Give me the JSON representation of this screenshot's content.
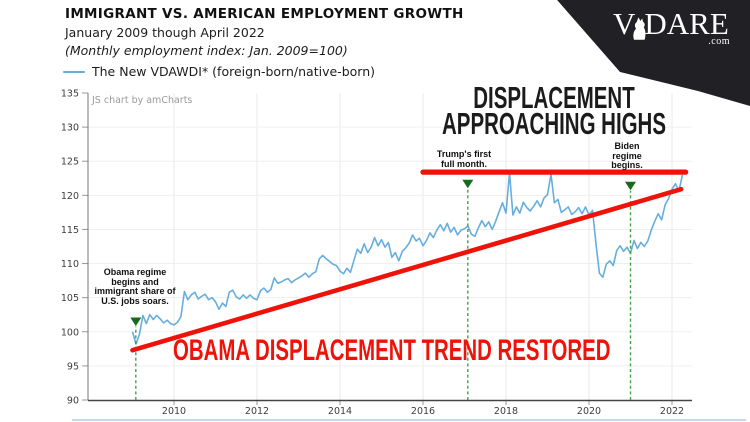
{
  "header": {
    "title": "IMMIGRANT VS. AMERICAN EMPLOYMENT GROWTH",
    "subtitle": "January 2009 though April 2022",
    "index_note": "(Monthly employment index: Jan. 2009=100)",
    "legend_label": "The New VDAWDI* (foreign-born/native-born)"
  },
  "branding": {
    "logo_v": "V",
    "logo_dare": "DARE",
    "logo_com": ".com",
    "banner_color": "#212125",
    "deer_icon": "deer-silhouette"
  },
  "watermark": "JS chart by amCharts",
  "colors": {
    "line_blue": "#67aede",
    "accent_red": "#ee1208",
    "marker_green": "#17691c",
    "dash_green": "#43a048",
    "big_text_black": "#1b1b1b"
  },
  "annotations": {
    "obama": {
      "lines": [
        "Obama regime",
        "begins and",
        "immigrant share of",
        "U.S. jobs soars."
      ]
    },
    "trump": {
      "lines": [
        "Trump's first",
        "full month."
      ]
    },
    "biden": {
      "lines": [
        "Biden",
        "regime",
        "begins."
      ]
    },
    "displacement_highs": {
      "line1": "DISPLACEMENT",
      "line2": "APPROACHING HIGHS"
    },
    "trend_restored": {
      "text": "OBAMA DISPLACEMENT TREND RESTORED"
    }
  },
  "chart_data": {
    "type": "line",
    "series_name": "The New VDAWDI* (foreign-born/native-born)",
    "x_start": "2009-01",
    "x_end": "2022-04",
    "x_tick_labels": [
      "2010",
      "2012",
      "2014",
      "2016",
      "2018",
      "2020",
      "2022"
    ],
    "y_ticks": [
      90,
      95,
      100,
      105,
      110,
      115,
      120,
      125,
      130,
      135
    ],
    "ylim": [
      90,
      135
    ],
    "grid": true,
    "legend_position": "top-left",
    "line_color": "#67aede",
    "values": [
      100.0,
      98.2,
      99.6,
      102.4,
      101.2,
      102.5,
      101.8,
      102.4,
      101.9,
      101.3,
      101.7,
      101.2,
      101.0,
      101.4,
      102.2,
      105.9,
      104.7,
      105.4,
      105.8,
      104.8,
      105.2,
      105.5,
      104.7,
      105.0,
      104.4,
      103.3,
      104.2,
      103.7,
      105.8,
      106.1,
      105.1,
      104.8,
      105.4,
      104.9,
      105.4,
      104.9,
      104.7,
      106.0,
      106.4,
      105.8,
      106.2,
      107.9,
      107.1,
      107.3,
      107.6,
      107.8,
      107.2,
      107.6,
      107.9,
      108.2,
      108.6,
      108.0,
      108.5,
      108.8,
      110.7,
      111.2,
      110.7,
      110.3,
      109.9,
      109.7,
      108.9,
      108.5,
      109.3,
      108.7,
      110.4,
      112.1,
      111.5,
      112.9,
      111.6,
      112.4,
      113.8,
      112.6,
      113.5,
      112.4,
      113.1,
      110.9,
      111.6,
      110.4,
      111.8,
      112.3,
      113.0,
      114.2,
      113.3,
      113.7,
      112.6,
      113.4,
      114.5,
      113.8,
      114.9,
      115.7,
      114.8,
      115.9,
      114.6,
      115.3,
      114.2,
      114.9,
      115.1,
      115.5,
      114.3,
      114.0,
      115.2,
      116.3,
      115.4,
      116.1,
      115.0,
      116.2,
      117.6,
      118.9,
      117.4,
      123.3,
      117.1,
      118.3,
      117.4,
      119.0,
      118.2,
      117.7,
      118.4,
      119.2,
      118.3,
      119.6,
      120.1,
      123.1,
      118.9,
      119.4,
      117.5,
      117.9,
      118.3,
      117.2,
      117.6,
      118.2,
      117.3,
      118.3,
      117.1,
      117.8,
      113.0,
      108.6,
      108.0,
      109.9,
      110.4,
      109.7,
      111.9,
      112.6,
      111.8,
      112.4,
      111.5,
      113.4,
      112.2,
      113.1,
      112.5,
      113.3,
      114.9,
      116.2,
      117.3,
      116.4,
      118.6,
      119.5,
      120.9,
      121.7,
      120.6,
      123.0
    ],
    "trend_line": {
      "label": "Obama displacement trend",
      "color": "#ee1208",
      "from": {
        "year": 2009.0,
        "value": 97.3
      },
      "to": {
        "year": 2022.22,
        "value": 120.9
      }
    },
    "high_line": {
      "label": "Displacement highs",
      "color": "#ee1208",
      "value": 123.4,
      "from_year": 2016.0,
      "to_year": 2022.33
    },
    "event_markers": [
      {
        "label": "Obama regime begins",
        "year": 2009.08,
        "marker_value": 101.5
      },
      {
        "label": "Trump's first full month",
        "year": 2017.08,
        "marker_value": 121.7
      },
      {
        "label": "Biden regime begins",
        "year": 2021.0,
        "marker_value": 121.4
      }
    ]
  }
}
